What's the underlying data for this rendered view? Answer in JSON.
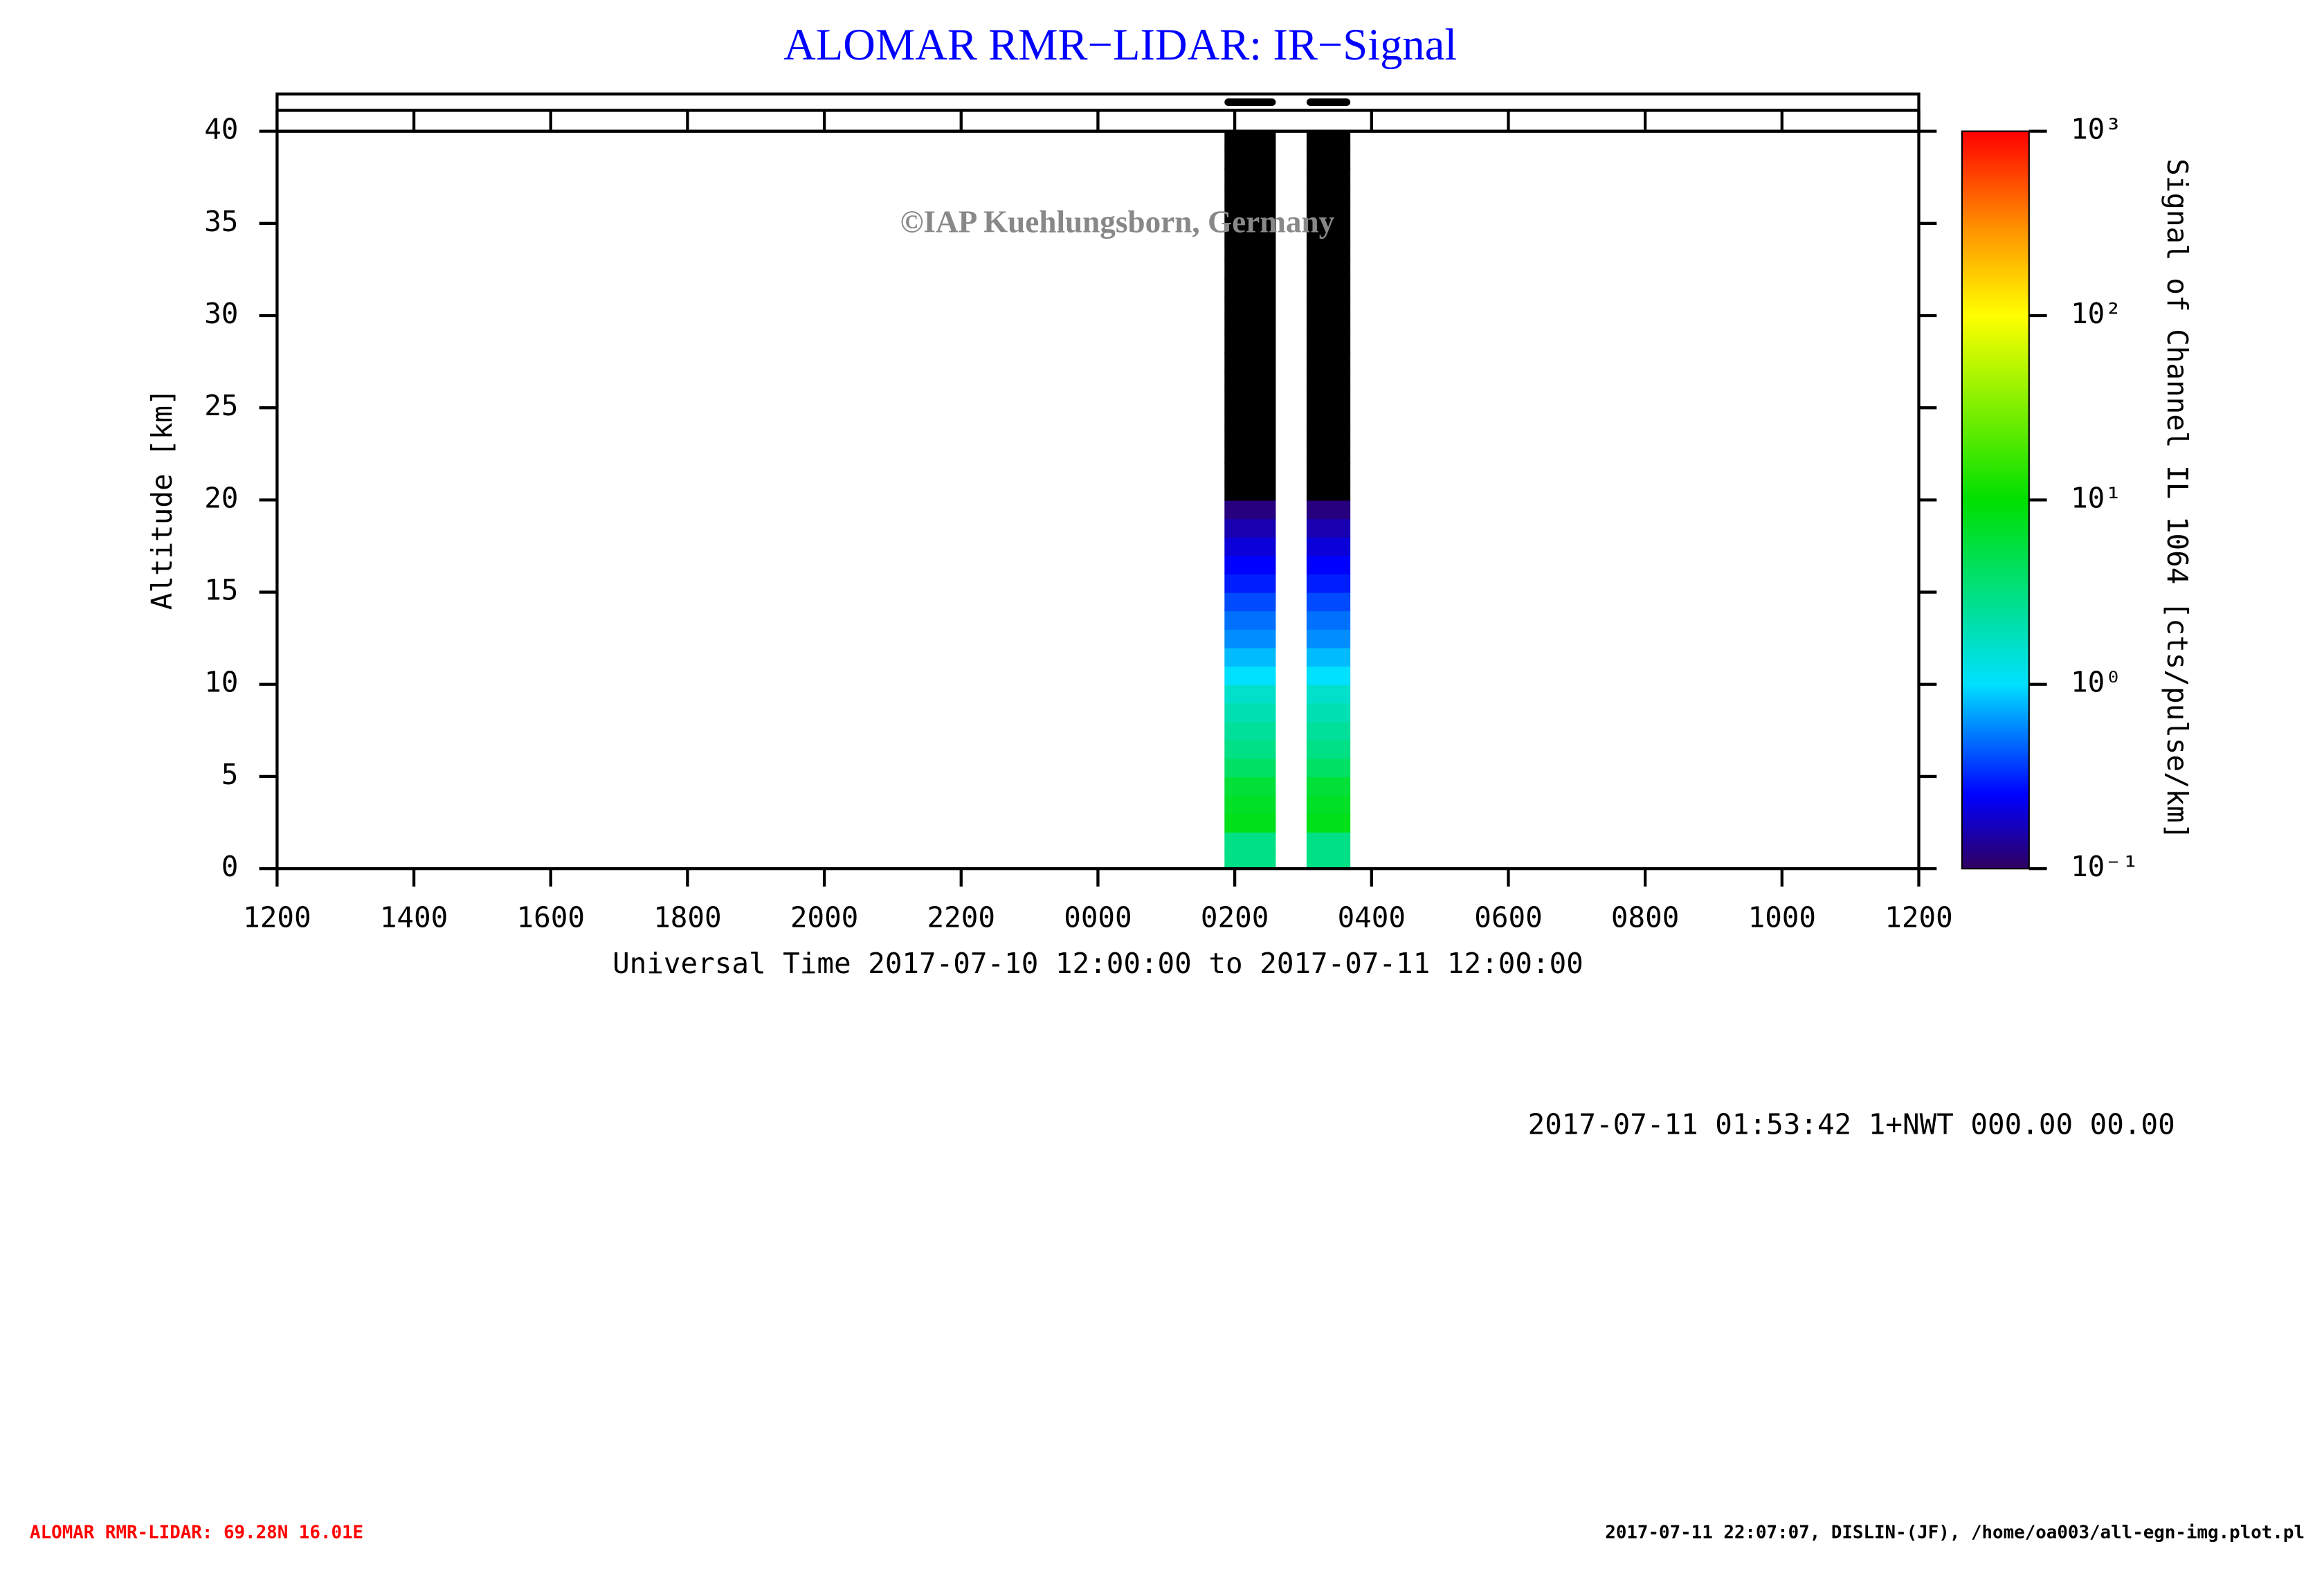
{
  "chart_data": {
    "type": "lidar",
    "title": "ALOMAR RMR−LIDAR: IR−Signal",
    "xlabel": "Universal Time 2017-07-10 12:00:00 to 2017-07-11 12:00:00",
    "ylabel": "Altitude [km]",
    "colorbar_label": "Signal of Channel IL 1064 [cts/pulse/km]",
    "watermark": "©IAP Kuehlungsborn, Germany",
    "status": "2017-07-11 01:53:42 1+NWT 000.00 00.00",
    "footer_left": "ALOMAR RMR-LIDAR: 69.28N 16.01E",
    "footer_right": "2017-07-11 22:07:07, DISLIN-(JF), /home/oa003/all-egn-img.plot.pl",
    "xlim": [
      0,
      24
    ],
    "xticks": [
      {
        "value": 0,
        "label": "1200"
      },
      {
        "value": 2,
        "label": "1400"
      },
      {
        "value": 4,
        "label": "1600"
      },
      {
        "value": 6,
        "label": "1800"
      },
      {
        "value": 8,
        "label": "2000"
      },
      {
        "value": 10,
        "label": "2200"
      },
      {
        "value": 12,
        "label": "0000"
      },
      {
        "value": 14,
        "label": "0200"
      },
      {
        "value": 16,
        "label": "0400"
      },
      {
        "value": 18,
        "label": "0600"
      },
      {
        "value": 20,
        "label": "0800"
      },
      {
        "value": 22,
        "label": "1000"
      },
      {
        "value": 24,
        "label": "1200"
      }
    ],
    "ylim": [
      0,
      40
    ],
    "yticks": [
      0,
      5,
      10,
      15,
      20,
      25,
      30,
      35,
      40
    ],
    "clim": [
      0.1,
      1000
    ],
    "log_color": true,
    "cticks": [
      {
        "value": 0.1,
        "label": "10⁻¹"
      },
      {
        "value": 1,
        "label": "10⁰"
      },
      {
        "value": 10,
        "label": "10¹"
      },
      {
        "value": 100,
        "label": "10²"
      },
      {
        "value": 1000,
        "label": "10³"
      }
    ],
    "blocks": [
      {
        "start": 13.85,
        "end": 14.6
      },
      {
        "start": 15.05,
        "end": 15.69
      }
    ],
    "altitudes": [
      0.5,
      1.5,
      2.5,
      3.5,
      4.5,
      5.5,
      6.5,
      7.5,
      8.5,
      9.5,
      10.5,
      11.5,
      12.5,
      13.5,
      14.5,
      15.5,
      16.5,
      17.5,
      18.5,
      19.5,
      20.5,
      21.5,
      22.5,
      23.5,
      24.5,
      25.5,
      26.5,
      27.5,
      28.5,
      29.5,
      30.5,
      31.5,
      32.5,
      33.5,
      34.5,
      35.5,
      36.5,
      37.5,
      38.5,
      39.5
    ],
    "signal": [
      3,
      3,
      8,
      7,
      6,
      4,
      3,
      2.5,
      2,
      1.6,
      1,
      0.8,
      0.6,
      0.5,
      0.4,
      0.3,
      0.25,
      0.2,
      0.16,
      0.12,
      0.08,
      0.05,
      0.05,
      0.05,
      0.05,
      0.05,
      0.05,
      0.05,
      0.05,
      0.05,
      0.05,
      0.05,
      0.05,
      0.05,
      0.05,
      0.05,
      0.05,
      0.05,
      0.05,
      0.05
    ]
  }
}
